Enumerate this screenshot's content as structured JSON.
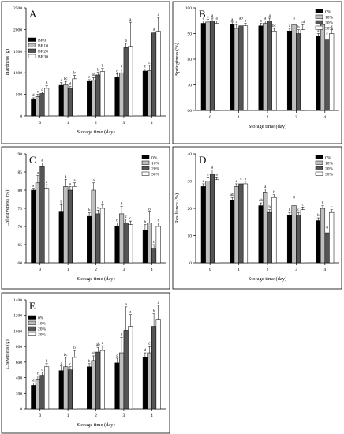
{
  "colors": {
    "s1": "#000000",
    "s2": "#bfbfbf",
    "s3": "#555555",
    "s4": "#ffffff"
  },
  "chart_data": [
    {
      "panel_label": "A",
      "type": "bar",
      "xlabel": "Storage time (day)",
      "ylabel": "Hardness (g)",
      "categories": [
        "0",
        "1",
        "2",
        "3",
        "4"
      ],
      "ylim": [
        0,
        2500
      ],
      "yticks": [
        0,
        500,
        1000,
        1500,
        2000,
        2500
      ],
      "series": [
        {
          "name": "BR0",
          "values": [
            380,
            710,
            800,
            890,
            1040
          ],
          "err": [
            40,
            60,
            40,
            90,
            50
          ],
          "letters": [
            "d",
            "c",
            "c",
            "d",
            "c"
          ]
        },
        {
          "name": "BR10",
          "values": [
            450,
            720,
            830,
            1000,
            1050
          ],
          "err": [
            50,
            80,
            60,
            90,
            120
          ],
          "letters": [
            "c",
            "bc",
            "ab",
            "c",
            "c"
          ]
        },
        {
          "name": "BR20",
          "values": [
            520,
            640,
            950,
            1580,
            1920
          ],
          "err": [
            30,
            40,
            60,
            100,
            20
          ],
          "letters": [
            "c",
            "d",
            "b",
            "b",
            "a"
          ]
        },
        {
          "name": "BR30",
          "values": [
            640,
            860,
            1030,
            1610,
            1960
          ],
          "err": [
            60,
            80,
            70,
            560,
            320
          ],
          "letters": [
            "b",
            "b",
            "b",
            "a",
            "a"
          ]
        }
      ],
      "legend": "left"
    },
    {
      "panel_label": "B",
      "type": "bar",
      "xlabel": "Storage time (day)",
      "ylabel": "Springiness (%)",
      "categories": [
        "0",
        "1",
        "2",
        "3",
        "4"
      ],
      "ylim": [
        60,
        100
      ],
      "yticks": [
        60,
        70,
        80,
        90,
        100
      ],
      "series": [
        {
          "name": "0%",
          "values": [
            94,
            93.5,
            93,
            91,
            89
          ],
          "err": [
            1,
            1,
            1,
            1,
            1
          ],
          "letters": [
            "a",
            "a",
            "a",
            "a",
            "a"
          ]
        },
        {
          "name": "10%",
          "values": [
            94.5,
            92,
            94,
            93.5,
            93.5
          ],
          "err": [
            1,
            1.5,
            1,
            1.5,
            1.5
          ],
          "letters": [
            "a",
            "a",
            "a",
            "a",
            "a"
          ]
        },
        {
          "name": "20%",
          "values": [
            95,
            93,
            95,
            90,
            87.5
          ],
          "err": [
            1,
            2,
            1,
            1.5,
            1.5
          ],
          "letters": [
            "a",
            "ab",
            "a",
            "b",
            "c"
          ]
        },
        {
          "name": "30%",
          "values": [
            94,
            93,
            91,
            91.5,
            90
          ],
          "err": [
            1,
            1,
            1,
            2,
            1.5
          ],
          "letters": [
            "a",
            "a",
            "bc",
            "cd",
            "d"
          ]
        }
      ],
      "legend": "top-right"
    },
    {
      "panel_label": "C",
      "type": "bar",
      "xlabel": "Storage time (day)",
      "ylabel": "Cohesiveness (%)",
      "categories": [
        "0",
        "1",
        "2",
        "3",
        "4"
      ],
      "ylim": [
        60,
        90
      ],
      "yticks": [
        60,
        65,
        70,
        75,
        80,
        85,
        90
      ],
      "series": [
        {
          "name": "0%",
          "values": [
            80,
            74,
            72.8,
            70,
            69
          ],
          "err": [
            0.5,
            2,
            1,
            1,
            1.5
          ],
          "letters": [
            "a",
            "b",
            "b",
            "b",
            "b"
          ]
        },
        {
          "name": "10%",
          "values": [
            82,
            81,
            80,
            73.5,
            71
          ],
          "err": [
            2,
            2,
            2,
            2,
            3
          ],
          "letters": [
            "a",
            "a",
            "a",
            "b",
            "b"
          ]
        },
        {
          "name": "20%",
          "values": [
            86.5,
            80,
            73.5,
            71,
            64
          ],
          "err": [
            1,
            1,
            1,
            1,
            1
          ],
          "letters": [
            "a",
            "a",
            "c",
            "c",
            "c"
          ]
        },
        {
          "name": "30%",
          "values": [
            80.5,
            81,
            75,
            70.5,
            70
          ],
          "err": [
            1,
            1,
            1,
            1,
            1
          ],
          "letters": [
            "a",
            "a",
            "c",
            "c",
            "c"
          ]
        }
      ],
      "legend": "top-right"
    },
    {
      "panel_label": "D",
      "type": "bar",
      "xlabel": "Storage time (day)",
      "ylabel": "Resilience (%)",
      "categories": [
        "0",
        "1",
        "2",
        "3",
        "4"
      ],
      "ylim": [
        0,
        40
      ],
      "yticks": [
        0,
        10,
        20,
        30,
        40
      ],
      "series": [
        {
          "name": "0%",
          "values": [
            28,
            23,
            21,
            17.5,
            15.5
          ],
          "err": [
            1,
            1,
            1,
            1,
            1
          ],
          "letters": [
            "a",
            "ab",
            "ab",
            "b",
            "b"
          ]
        },
        {
          "name": "10%",
          "values": [
            30,
            28,
            26,
            21,
            20
          ],
          "err": [
            1.5,
            1,
            1,
            2,
            1
          ],
          "letters": [
            "a",
            "a",
            "a",
            "b",
            "b"
          ]
        },
        {
          "name": "20%",
          "values": [
            32.5,
            29,
            18.5,
            17.5,
            11
          ],
          "err": [
            1.5,
            1,
            1,
            1,
            1
          ],
          "letters": [
            "a",
            "a",
            "b",
            "c",
            "d"
          ]
        },
        {
          "name": "30%",
          "values": [
            30.5,
            29,
            24,
            19.5,
            18.5
          ],
          "err": [
            1,
            1,
            1,
            1,
            1
          ],
          "letters": [
            "a",
            "a",
            "b",
            "c",
            "c"
          ]
        }
      ],
      "legend": "top-right"
    },
    {
      "panel_label": "E",
      "type": "bar",
      "xlabel": "Storage time (day)",
      "ylabel": "Chewiness (g)",
      "categories": [
        "0",
        "1",
        "2",
        "3",
        "4"
      ],
      "ylim": [
        0,
        1400
      ],
      "yticks": [
        0,
        200,
        400,
        600,
        800,
        1000,
        1200,
        1400
      ],
      "series": [
        {
          "name": "0%",
          "values": [
            300,
            490,
            540,
            590,
            660
          ],
          "err": [
            30,
            60,
            40,
            60,
            60
          ],
          "letters": [
            "d",
            "c",
            "b",
            "c",
            "d"
          ]
        },
        {
          "name": "10%",
          "values": [
            380,
            540,
            620,
            720,
            720
          ],
          "err": [
            40,
            120,
            60,
            200,
            80
          ],
          "letters": [
            "c",
            "bc",
            "ab",
            "b",
            "c"
          ]
        },
        {
          "name": "20%",
          "values": [
            430,
            500,
            730,
            1010,
            1060
          ],
          "err": [
            40,
            40,
            60,
            300,
            160
          ],
          "letters": [
            "c",
            "c",
            "ab",
            "a",
            "b"
          ]
        },
        {
          "name": "30%",
          "values": [
            540,
            660,
            750,
            1060,
            1150
          ],
          "err": [
            40,
            90,
            60,
            150,
            180
          ],
          "letters": [
            "b",
            "b",
            "a",
            "a",
            "a"
          ]
        }
      ],
      "legend": "top-left"
    }
  ]
}
